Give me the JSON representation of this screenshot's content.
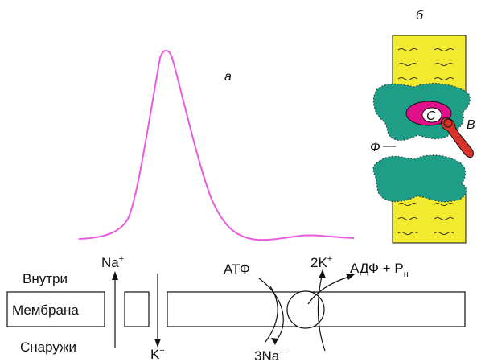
{
  "panel_labels": {
    "a": "а",
    "b": "б"
  },
  "regions": {
    "inside": "Внутри",
    "membrane": "Мембрана",
    "outside": "Снаружи"
  },
  "ions": {
    "na_base": "Na",
    "na_sup": "+",
    "k_base": "K",
    "k_sup": "+"
  },
  "pump": {
    "atp": "АТФ",
    "two_k": "2K",
    "two_k_sup": "+",
    "adp": "АДФ + Р",
    "adp_sub": "н",
    "three_na": "3Na",
    "three_na_sup": "+"
  },
  "structure_labels": {
    "c": "С",
    "v": "В",
    "f": "Ф"
  },
  "colors": {
    "action_potential_curve": "#e85be0",
    "cylinder": "#f2ea2e",
    "protein": "#1e9e86",
    "protein_core": "#e0118a",
    "appendage": "#d8322a",
    "lines": "#111111"
  }
}
